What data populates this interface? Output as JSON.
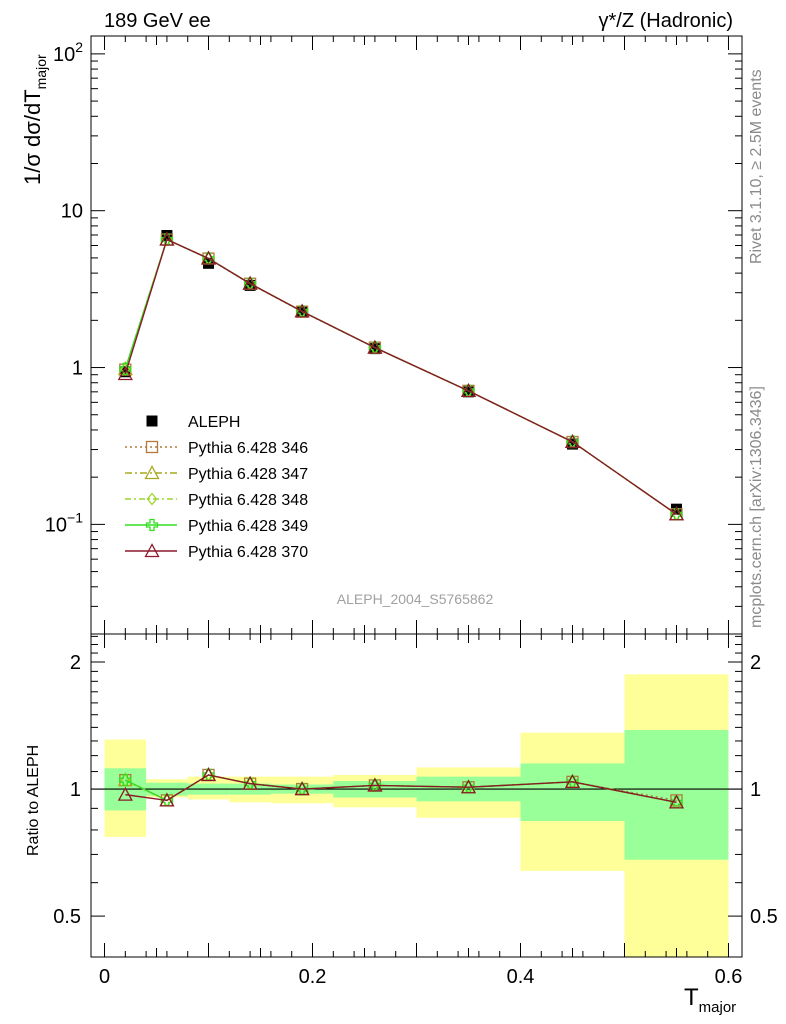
{
  "header": {
    "left": "189 GeV ee",
    "right": "γ*/Z (Hadronic)"
  },
  "side_labels": {
    "rivet": "Rivet 3.1.10, ≥ 2.5M events",
    "mcplots": "mcplots.cern.ch [arXiv:1306.3436]"
  },
  "watermark": "ALEPH_2004_S5765862",
  "chart_data": [
    {
      "type": "line",
      "panel": "main",
      "ylabel": "1/σ  dσ/dT major",
      "yscale": "log",
      "ylim": [
        0.02,
        130
      ],
      "xlim": [
        -0.013,
        0.613
      ],
      "ytick_labels": [
        "10^2",
        "10",
        "1",
        "10^-1"
      ],
      "x": [
        0.02,
        0.06,
        0.1,
        0.14,
        0.19,
        0.26,
        0.35,
        0.45,
        0.55
      ],
      "x_edges": [
        0.0,
        0.04,
        0.08,
        0.12,
        0.16,
        0.22,
        0.3,
        0.4,
        0.5,
        0.6
      ],
      "series": [
        {
          "name": "ALEPH",
          "color": "#000000",
          "marker": "square-filled",
          "values": [
            0.94,
            6.95,
            4.62,
            3.34,
            2.27,
            1.32,
            0.7,
            0.325,
            0.125
          ]
        },
        {
          "name": "Pythia 6.428 346",
          "color": "#b07a3a",
          "marker": "square-open",
          "dash": "2,3",
          "values": [
            0.97,
            6.55,
            4.95,
            3.42,
            2.27,
            1.34,
            0.71,
            0.335,
            0.116
          ]
        },
        {
          "name": "Pythia 6.428 347",
          "color": "#a7a81c",
          "marker": "triangle-open",
          "dash": "7,3,2,3",
          "values": [
            0.98,
            6.55,
            4.97,
            3.43,
            2.28,
            1.34,
            0.71,
            0.336,
            0.116
          ]
        },
        {
          "name": "Pythia 6.428 348",
          "color": "#9ed62e",
          "marker": "diamond-open",
          "dash": "6,3,2,3",
          "values": [
            0.98,
            6.55,
            4.96,
            3.43,
            2.28,
            1.34,
            0.71,
            0.336,
            0.116
          ]
        },
        {
          "name": "Pythia 6.428 349",
          "color": "#33dd22",
          "marker": "cross-open",
          "dash": "",
          "values": [
            0.98,
            6.55,
            4.96,
            3.43,
            2.28,
            1.34,
            0.71,
            0.336,
            0.116
          ]
        },
        {
          "name": "Pythia 6.428 370",
          "color": "#8b1a2a",
          "marker": "triangle-open",
          "dash": "",
          "values": [
            0.91,
            6.55,
            4.96,
            3.43,
            2.28,
            1.34,
            0.71,
            0.336,
            0.116
          ]
        }
      ]
    },
    {
      "type": "line",
      "panel": "ratio",
      "ylabel": "Ratio to ALEPH",
      "xlabel": "T major",
      "yscale": "log",
      "ylim": [
        0.4,
        2.33
      ],
      "xlim": [
        -0.013,
        0.613
      ],
      "x_ticks": [
        0,
        0.2,
        0.4,
        0.6
      ],
      "x_tick_labels": [
        "0",
        "0.2",
        "0.4",
        "0.6"
      ],
      "y_ticks": [
        0.5,
        1,
        2
      ],
      "y_tick_labels": [
        "0.5",
        "1",
        "2"
      ],
      "x": [
        0.02,
        0.06,
        0.1,
        0.14,
        0.19,
        0.26,
        0.35,
        0.45,
        0.55
      ],
      "x_edges": [
        0.0,
        0.04,
        0.08,
        0.12,
        0.16,
        0.22,
        0.3,
        0.4,
        0.5,
        0.6
      ],
      "band_stat": {
        "color": "#99ff99",
        "low": [
          0.89,
          0.965,
          0.97,
          0.97,
          0.975,
          0.955,
          0.935,
          0.84,
          0.68
        ],
        "high": [
          1.12,
          1.035,
          1.03,
          1.03,
          1.025,
          1.045,
          1.07,
          1.15,
          1.38
        ]
      },
      "band_total": {
        "color": "#ffff99",
        "low": [
          0.77,
          0.955,
          0.945,
          0.93,
          0.925,
          0.905,
          0.855,
          0.64,
          0.33
        ],
        "high": [
          1.31,
          1.055,
          1.07,
          1.07,
          1.07,
          1.08,
          1.125,
          1.36,
          1.87
        ]
      },
      "series": [
        {
          "name": "Pythia 6.428 346",
          "color": "#b07a3a",
          "marker": "square-open",
          "dash": "2,3",
          "values": [
            1.05,
            0.94,
            1.08,
            1.03,
            1.0,
            1.02,
            1.01,
            1.04,
            0.94
          ]
        },
        {
          "name": "Pythia 6.428 347",
          "color": "#a7a81c",
          "marker": "triangle-open",
          "dash": "7,3,2,3",
          "values": [
            1.05,
            0.94,
            1.08,
            1.03,
            1.0,
            1.02,
            1.01,
            1.04,
            0.93
          ]
        },
        {
          "name": "Pythia 6.428 348",
          "color": "#9ed62e",
          "marker": "diamond-open",
          "dash": "6,3,2,3",
          "values": [
            1.05,
            0.94,
            1.08,
            1.03,
            1.0,
            1.02,
            1.01,
            1.04,
            0.93
          ]
        },
        {
          "name": "Pythia 6.428 349",
          "color": "#33dd22",
          "marker": "cross-open",
          "dash": "",
          "values": [
            1.05,
            0.94,
            1.08,
            1.03,
            1.0,
            1.02,
            1.01,
            1.04,
            0.93
          ]
        },
        {
          "name": "Pythia 6.428 370",
          "color": "#8b1a2a",
          "marker": "triangle-open",
          "dash": "",
          "values": [
            0.97,
            0.94,
            1.08,
            1.03,
            1.0,
            1.02,
            1.01,
            1.04,
            0.93
          ]
        }
      ]
    }
  ]
}
